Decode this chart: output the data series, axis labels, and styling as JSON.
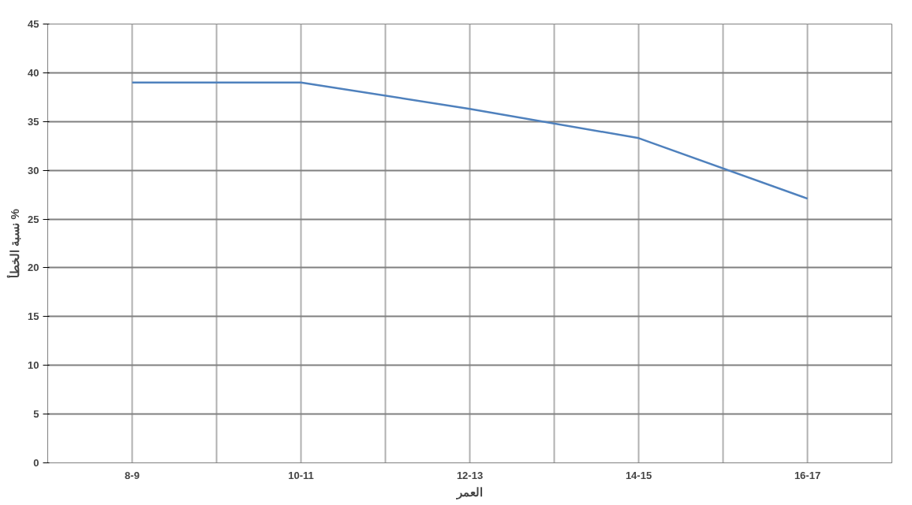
{
  "chart_data": {
    "type": "line",
    "xlabel": "العمر",
    "ylabel": "نسبة الخطأ %",
    "categories": [
      "8-9",
      "10-11",
      "12-13",
      "14-15",
      "16-17"
    ],
    "series": [
      {
        "color": "#4f81bd",
        "values": [
          39,
          39,
          36.3,
          33.3,
          27.1
        ]
      }
    ],
    "ylim": [
      0,
      45
    ],
    "yticks": [
      0,
      5,
      10,
      15,
      20,
      25,
      30,
      35,
      40,
      45
    ],
    "grid": true,
    "marker": "none",
    "line_style": "solid"
  }
}
